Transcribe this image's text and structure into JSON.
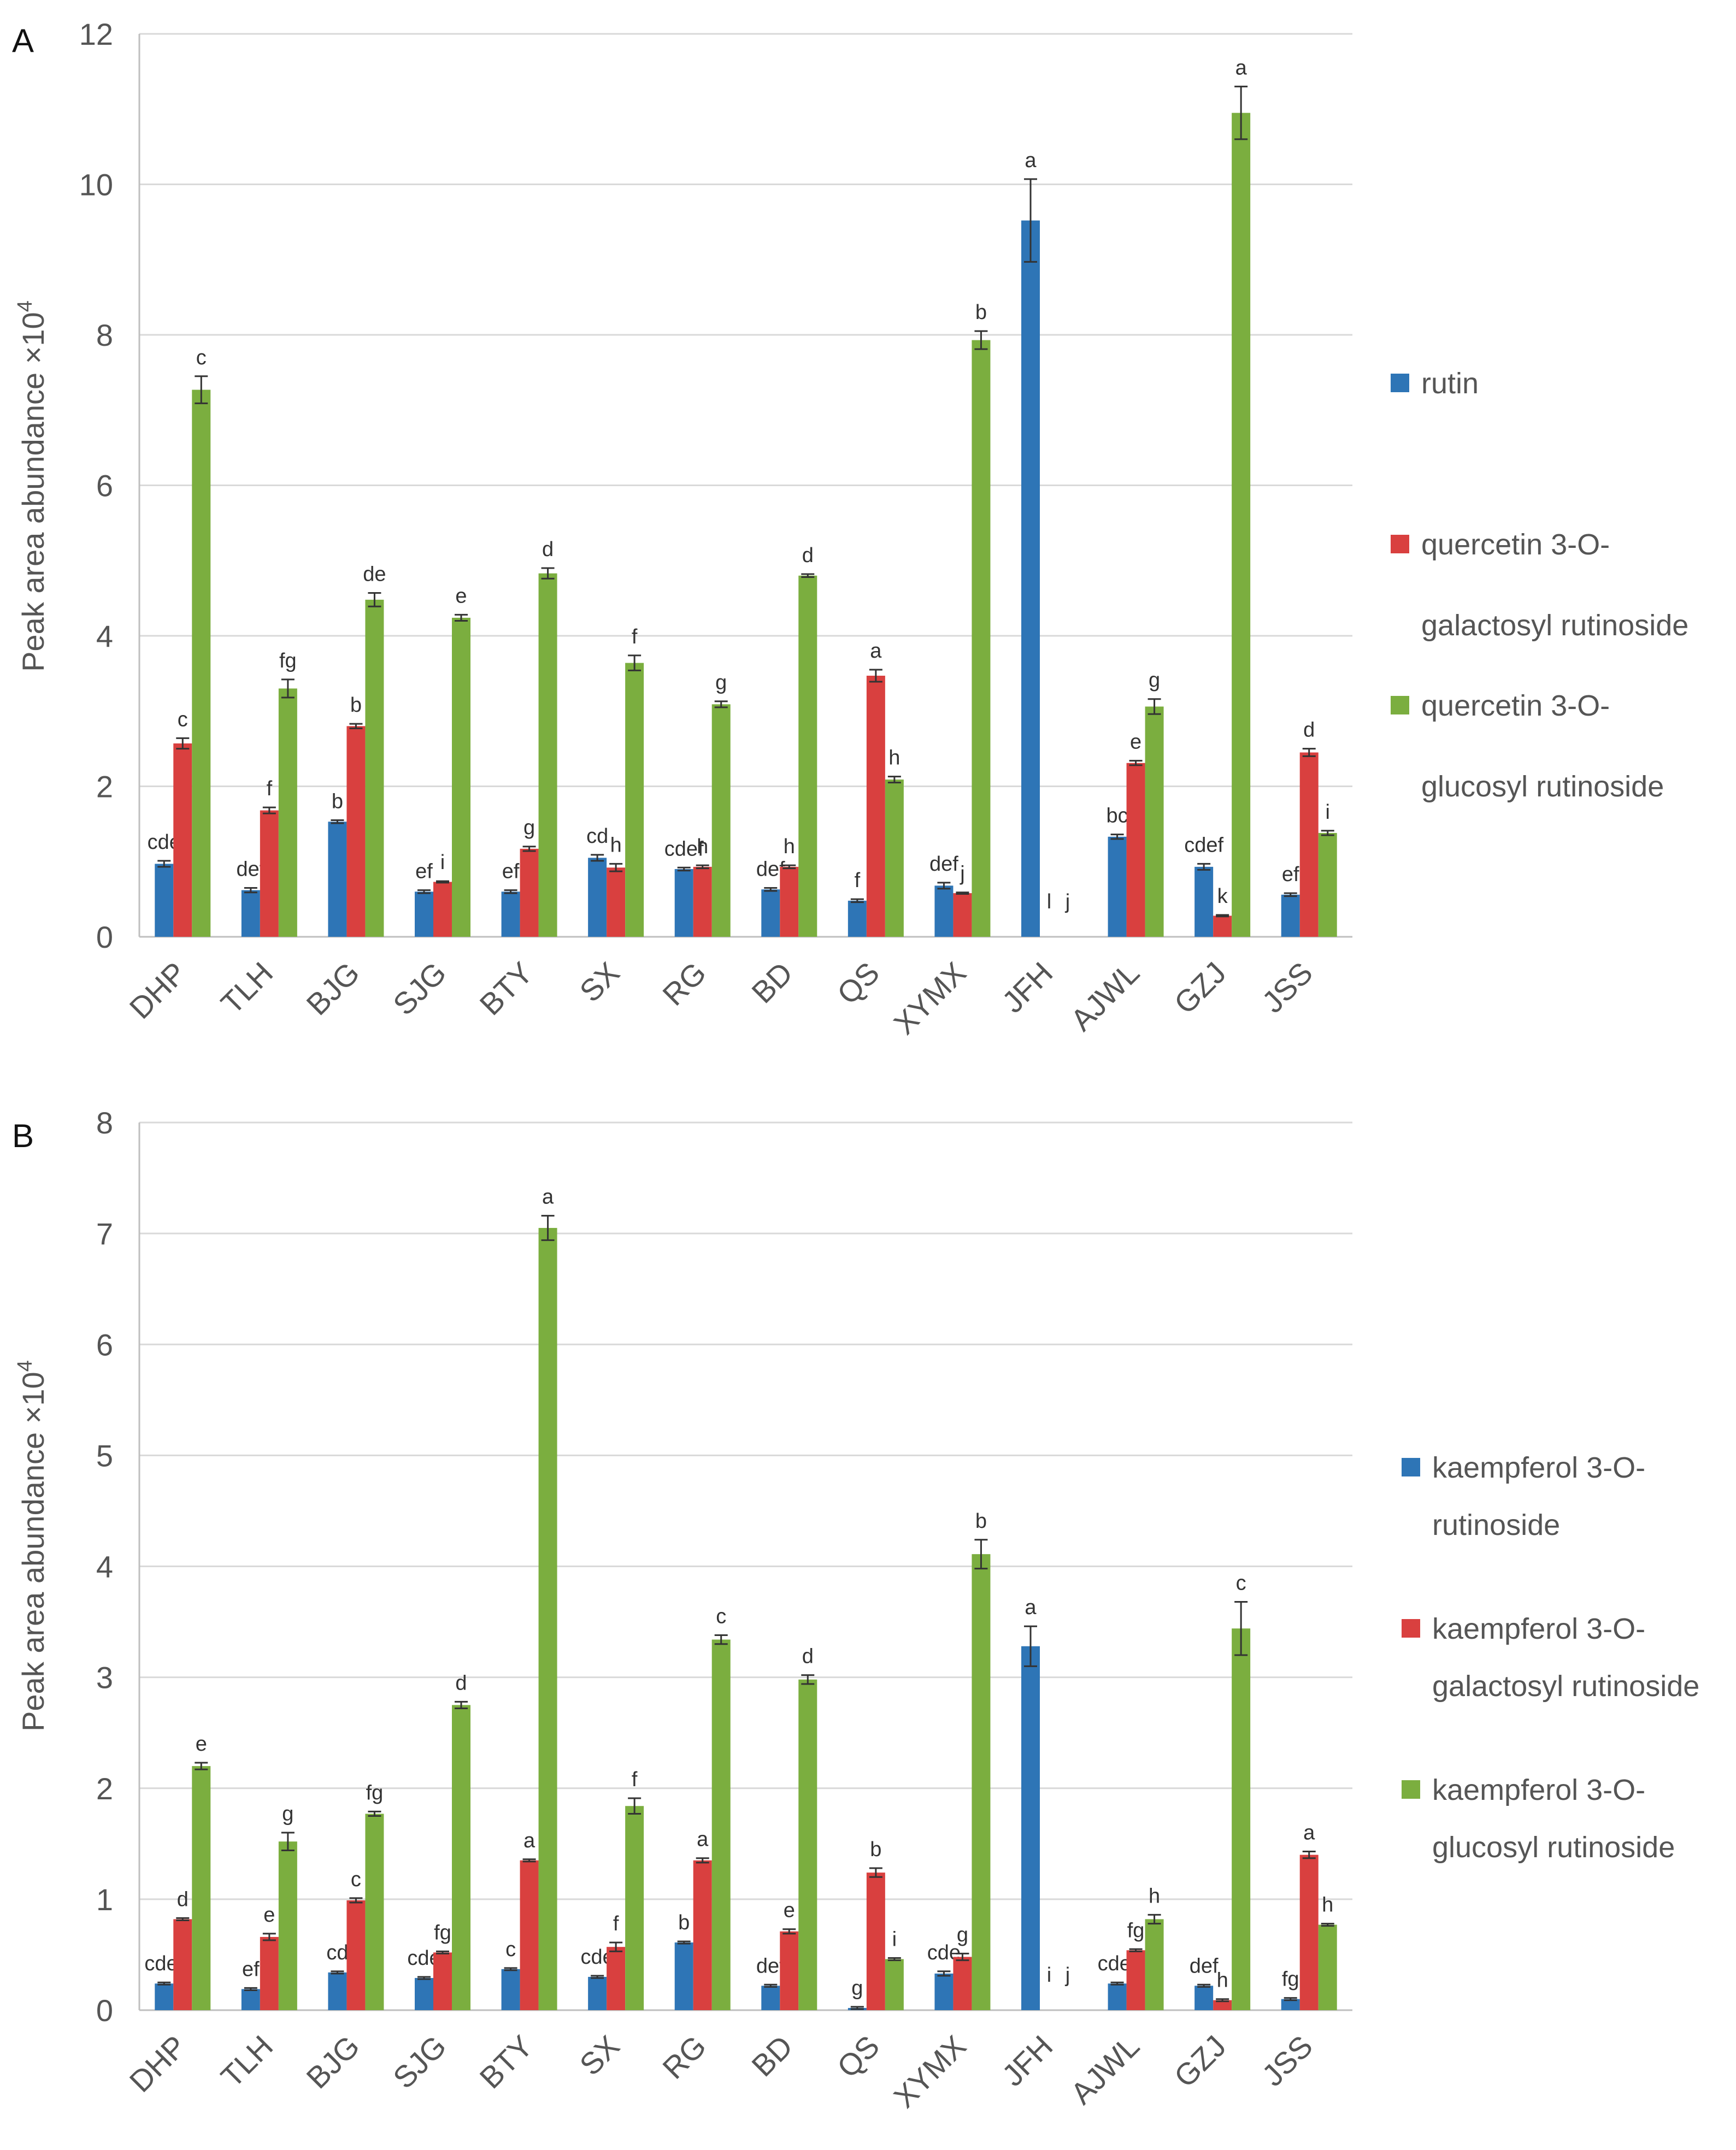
{
  "chart_data": [
    {
      "panel_label": "A",
      "type": "bar",
      "ylabel": "Peak  area abundance ×10",
      "ylabel_exponent": "4",
      "ylim": [
        0,
        12
      ],
      "yticks": [
        0,
        2,
        4,
        6,
        8,
        10,
        12
      ],
      "grid": true,
      "legend_position": "right",
      "categories": [
        "DHP",
        "TLH",
        "BJG",
        "SJG",
        "BTY",
        "SX",
        "RG",
        "BD",
        "QS",
        "XYMX",
        "JFH",
        "AJWL",
        "GZJ",
        "JSS"
      ],
      "series": [
        {
          "name_lines": [
            "rutin"
          ],
          "color": "#2E75B6",
          "values": [
            0.97,
            0.62,
            1.53,
            0.6,
            0.6,
            1.05,
            0.9,
            0.63,
            0.48,
            0.68,
            9.52,
            1.33,
            0.93,
            0.56
          ],
          "errors": [
            0.04,
            0.03,
            0.02,
            0.02,
            0.02,
            0.04,
            0.02,
            0.02,
            0.02,
            0.04,
            0.55,
            0.03,
            0.04,
            0.02
          ],
          "letters": [
            "cde",
            "def",
            "b",
            "ef",
            "ef",
            "cd",
            "cdef",
            "def",
            "f",
            "def",
            "a",
            "bc",
            "cdef",
            "ef"
          ]
        },
        {
          "name_lines": [
            "quercetin 3-O-",
            "galactosyl rutinoside"
          ],
          "color": "#D9403F",
          "values": [
            2.57,
            1.68,
            2.8,
            0.73,
            1.17,
            0.92,
            0.93,
            0.93,
            3.47,
            0.58,
            0,
            2.31,
            0.28,
            2.45
          ],
          "errors": [
            0.07,
            0.04,
            0.03,
            0.01,
            0.03,
            0.05,
            0.02,
            0.02,
            0.08,
            0.01,
            0,
            0.03,
            0.01,
            0.05
          ],
          "letters": [
            "c",
            "f",
            "b",
            "i",
            "g",
            "h",
            "h",
            "h",
            "a",
            "j",
            "l",
            "e",
            "k",
            "d"
          ]
        },
        {
          "name_lines": [
            "quercetin 3-O-",
            "glucosyl rutinoside"
          ],
          "color": "#7BAE3F",
          "values": [
            7.27,
            3.3,
            4.48,
            4.24,
            4.83,
            3.64,
            3.09,
            4.8,
            2.09,
            7.93,
            0,
            3.06,
            10.95,
            1.38
          ],
          "errors": [
            0.18,
            0.12,
            0.09,
            0.04,
            0.07,
            0.1,
            0.04,
            0.02,
            0.04,
            0.12,
            0,
            0.1,
            0.35,
            0.03
          ],
          "letters": [
            "c",
            "fg",
            "de",
            "e",
            "d",
            "f",
            "g",
            "d",
            "h",
            "b",
            "j",
            "g",
            "a",
            "i"
          ]
        }
      ]
    },
    {
      "panel_label": "B",
      "type": "bar",
      "ylabel": "Peak  area abundance ×10",
      "ylabel_exponent": "4",
      "ylim": [
        0,
        8
      ],
      "yticks": [
        0,
        1,
        2,
        3,
        4,
        5,
        6,
        7,
        8
      ],
      "grid": true,
      "legend_position": "right",
      "categories": [
        "DHP",
        "TLH",
        "BJG",
        "SJG",
        "BTY",
        "SX",
        "RG",
        "BD",
        "QS",
        "XYMX",
        "JFH",
        "AJWL",
        "GZJ",
        "JSS"
      ],
      "series": [
        {
          "name_lines": [
            "kaempferol 3-O-",
            "rutinoside"
          ],
          "color": "#2E75B6",
          "values": [
            0.24,
            0.19,
            0.34,
            0.29,
            0.37,
            0.3,
            0.61,
            0.22,
            0.02,
            0.33,
            3.28,
            0.24,
            0.22,
            0.1
          ],
          "errors": [
            0.01,
            0.01,
            0.01,
            0.01,
            0.01,
            0.01,
            0.01,
            0.01,
            0.01,
            0.02,
            0.18,
            0.01,
            0.01,
            0.01
          ],
          "letters": [
            "cdef",
            "ef",
            "cd",
            "cde",
            "c",
            "cde",
            "b",
            "def",
            "g",
            "cde",
            "a",
            "cdef",
            "def",
            "fg"
          ]
        },
        {
          "name_lines": [
            "kaempferol 3-O-",
            "galactosyl rutinoside"
          ],
          "color": "#D9403F",
          "values": [
            0.82,
            0.66,
            0.99,
            0.52,
            1.35,
            0.57,
            1.35,
            0.71,
            1.24,
            0.48,
            0,
            0.54,
            0.09,
            1.4
          ],
          "errors": [
            0.01,
            0.03,
            0.02,
            0.01,
            0.01,
            0.04,
            0.02,
            0.02,
            0.04,
            0.03,
            0,
            0.01,
            0.01,
            0.03
          ],
          "letters": [
            "d",
            "e",
            "c",
            "fg",
            "a",
            "f",
            "a",
            "e",
            "b",
            "g",
            "i",
            "fg",
            "h",
            "a"
          ]
        },
        {
          "name_lines": [
            "kaempferol 3-O-",
            "glucosyl rutinoside"
          ],
          "color": "#7BAE3F",
          "values": [
            2.2,
            1.52,
            1.77,
            2.75,
            7.05,
            1.84,
            3.34,
            2.98,
            0.46,
            4.11,
            0,
            0.82,
            3.44,
            0.77
          ],
          "errors": [
            0.03,
            0.08,
            0.02,
            0.03,
            0.11,
            0.07,
            0.04,
            0.04,
            0.01,
            0.13,
            0,
            0.04,
            0.24,
            0.01
          ],
          "letters": [
            "e",
            "g",
            "fg",
            "d",
            "a",
            "f",
            "c",
            "d",
            "i",
            "b",
            "j",
            "h",
            "c",
            "h"
          ]
        }
      ]
    }
  ]
}
